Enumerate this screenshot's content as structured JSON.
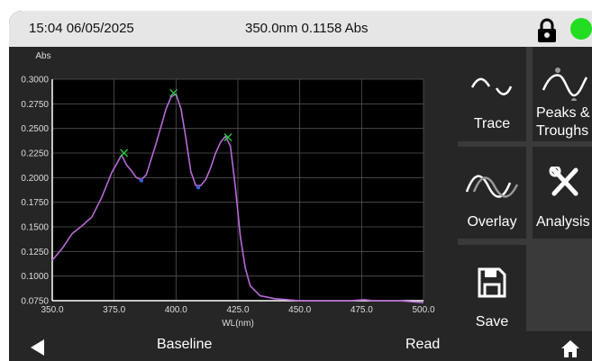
{
  "status": {
    "datetime": "15:04 06/05/2025",
    "reading": "350.0nm 0.1158 Abs"
  },
  "colors": {
    "status_dot": "#22dd22",
    "trace": "#b86ad6",
    "peak_marker": "#2ecc40",
    "trough_marker": "#3a5fd9"
  },
  "icons": [
    "lock-icon",
    "status-indicator",
    "trace-icon",
    "peaks-troughs-icon",
    "overlay-icon",
    "analysis-icon",
    "save-icon",
    "back-arrow-icon",
    "home-icon"
  ],
  "side_buttons": {
    "trace": "Trace",
    "peaks_line1": "Peaks &",
    "peaks_line2": "Troughs",
    "overlay": "Overlay",
    "analysis": "Analysis",
    "save": "Save"
  },
  "bottom": {
    "baseline": "Baseline",
    "read": "Read"
  },
  "chart_data": {
    "type": "line",
    "xlabel": "WL(nm)",
    "ylabel": "Abs",
    "xlim": [
      350,
      500
    ],
    "ylim": [
      0.075,
      0.3
    ],
    "grid": true,
    "x_ticks": [
      "350.0",
      "375.0",
      "400.0",
      "425.0",
      "450.0",
      "475.0",
      "500.0"
    ],
    "y_ticks": [
      "0.0750",
      "0.1000",
      "0.1250",
      "0.1500",
      "0.1750",
      "0.2000",
      "0.2250",
      "0.2500",
      "0.2750",
      "0.3000"
    ],
    "series": [
      {
        "x": [
          350,
          354,
          358,
          362,
          366,
          370,
          374,
          378,
          380,
          382,
          384,
          386,
          388,
          392,
          396,
          398,
          400,
          402,
          404,
          406,
          408,
          410,
          412,
          414,
          416,
          418,
          420,
          422,
          424,
          426,
          428,
          430,
          434,
          440,
          450,
          460,
          470,
          476,
          480,
          490,
          500
        ],
        "y": [
          0.116,
          0.128,
          0.143,
          0.151,
          0.16,
          0.18,
          0.205,
          0.223,
          0.213,
          0.207,
          0.2,
          0.198,
          0.203,
          0.235,
          0.27,
          0.282,
          0.285,
          0.27,
          0.24,
          0.206,
          0.192,
          0.192,
          0.198,
          0.21,
          0.225,
          0.236,
          0.242,
          0.232,
          0.19,
          0.14,
          0.108,
          0.09,
          0.08,
          0.077,
          0.075,
          0.075,
          0.075,
          0.076,
          0.075,
          0.075,
          0.073
        ]
      }
    ],
    "peaks": [
      {
        "x": 379,
        "y": 0.225
      },
      {
        "x": 399,
        "y": 0.286
      },
      {
        "x": 421,
        "y": 0.241
      }
    ],
    "troughs": [
      {
        "x": 386,
        "y": 0.198
      },
      {
        "x": 409,
        "y": 0.191
      }
    ]
  }
}
